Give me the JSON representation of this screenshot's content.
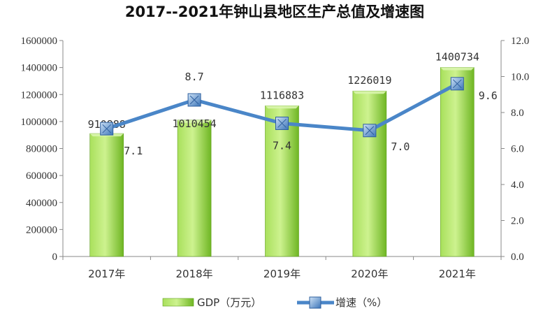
{
  "chart_data": {
    "type": "bar",
    "title": "2017--2021年钟山县地区生产总值及增速图",
    "categories": [
      "2017年",
      "2018年",
      "2019年",
      "2020年",
      "2021年"
    ],
    "series": [
      {
        "name": "GDP（万元）",
        "type": "bar",
        "axis": "left",
        "values": [
          910888,
          1010454,
          1116883,
          1226019,
          1400734
        ],
        "labels": [
          "910888",
          "1010454",
          "1116883",
          "1226019",
          "1400734"
        ],
        "color": "#7dc72a"
      },
      {
        "name": "增速（%）",
        "type": "line",
        "axis": "right",
        "values": [
          7.1,
          8.7,
          7.4,
          7.0,
          9.6
        ],
        "labels": [
          "7.1",
          "8.7",
          "7.4",
          "7.0",
          "9.6"
        ],
        "color": "#4a86c8"
      }
    ],
    "y_left": {
      "min": 0,
      "max": 1600000,
      "ticks": [
        "0",
        "200000",
        "400000",
        "600000",
        "800000",
        "1000000",
        "1200000",
        "1400000",
        "1600000"
      ]
    },
    "y_right": {
      "min": 0,
      "max": 12,
      "ticks": [
        "0.0",
        "2.0",
        "4.0",
        "6.0",
        "8.0",
        "10.0",
        "12.0"
      ]
    },
    "grid": false,
    "legend": "bottom"
  }
}
